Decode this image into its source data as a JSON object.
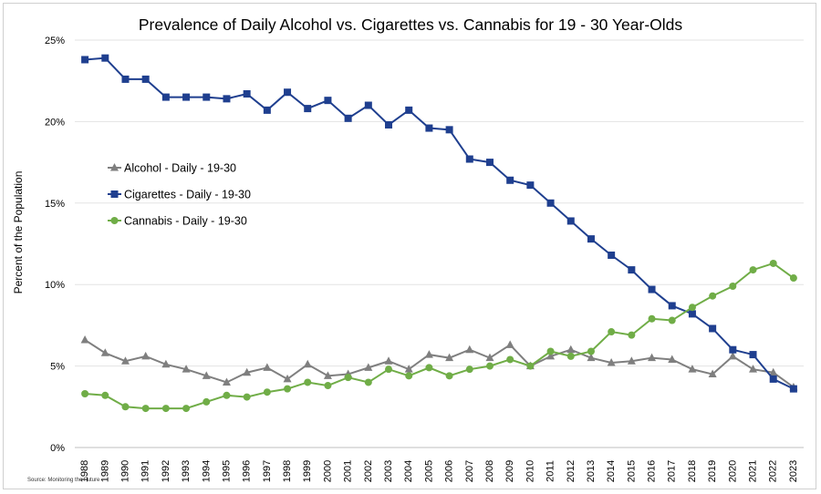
{
  "chart_data": {
    "type": "line",
    "title": "Prevalence of Daily Alcohol vs. Cigarettes vs. Cannabis for 19 - 30 Year-Olds",
    "xlabel": "",
    "ylabel": "Percent of the Population",
    "ylim": [
      0,
      25
    ],
    "yticks": [
      "0%",
      "5%",
      "10%",
      "15%",
      "20%",
      "25%"
    ],
    "ytick_values": [
      0,
      5,
      10,
      15,
      20,
      25
    ],
    "grid": "horizontal",
    "legend_position": "left-middle",
    "source": "Source: Monitoring the Future",
    "categories": [
      "1988",
      "1989",
      "1990",
      "1991",
      "1992",
      "1993",
      "1994",
      "1995",
      "1996",
      "1997",
      "1998",
      "1999",
      "2000",
      "2001",
      "2002",
      "2003",
      "2004",
      "2005",
      "2006",
      "2007",
      "2008",
      "2009",
      "2010",
      "2011",
      "2012",
      "2013",
      "2014",
      "2015",
      "2016",
      "2017",
      "2018",
      "2019",
      "2020",
      "2021",
      "2022",
      "2023"
    ],
    "series": [
      {
        "name": "Alcohol - Daily - 19-30",
        "color": "#7f7f7f",
        "marker": "triangle",
        "values": [
          6.6,
          5.8,
          5.3,
          5.6,
          5.1,
          4.8,
          4.4,
          4.0,
          4.6,
          4.9,
          4.2,
          5.1,
          4.4,
          4.5,
          4.9,
          5.3,
          4.8,
          5.7,
          5.5,
          6.0,
          5.5,
          6.3,
          5.0,
          5.6,
          6.0,
          5.5,
          5.2,
          5.3,
          5.5,
          5.4,
          4.8,
          4.5,
          5.6,
          4.8,
          4.6,
          3.7
        ]
      },
      {
        "name": "Cigarettes - Daily - 19-30",
        "color": "#1f3f8f",
        "marker": "square",
        "values": [
          23.8,
          23.9,
          22.6,
          22.6,
          21.5,
          21.5,
          21.5,
          21.4,
          21.7,
          20.7,
          21.8,
          20.8,
          21.3,
          20.2,
          21.0,
          19.8,
          20.7,
          19.6,
          19.5,
          17.7,
          17.5,
          16.4,
          16.1,
          15.0,
          13.9,
          12.8,
          11.8,
          10.9,
          9.7,
          8.7,
          8.2,
          7.3,
          6.0,
          5.7,
          4.2,
          3.6
        ]
      },
      {
        "name": "Cannabis - Daily - 19-30",
        "color": "#70ad47",
        "marker": "circle",
        "values": [
          3.3,
          3.2,
          2.5,
          2.4,
          2.4,
          2.4,
          2.8,
          3.2,
          3.1,
          3.4,
          3.6,
          4.0,
          3.8,
          4.3,
          4.0,
          4.8,
          4.4,
          4.9,
          4.4,
          4.8,
          5.0,
          5.4,
          5.0,
          5.9,
          5.6,
          5.9,
          7.1,
          6.9,
          7.9,
          7.8,
          8.6,
          9.3,
          9.9,
          10.9,
          11.3,
          10.4
        ]
      }
    ]
  }
}
